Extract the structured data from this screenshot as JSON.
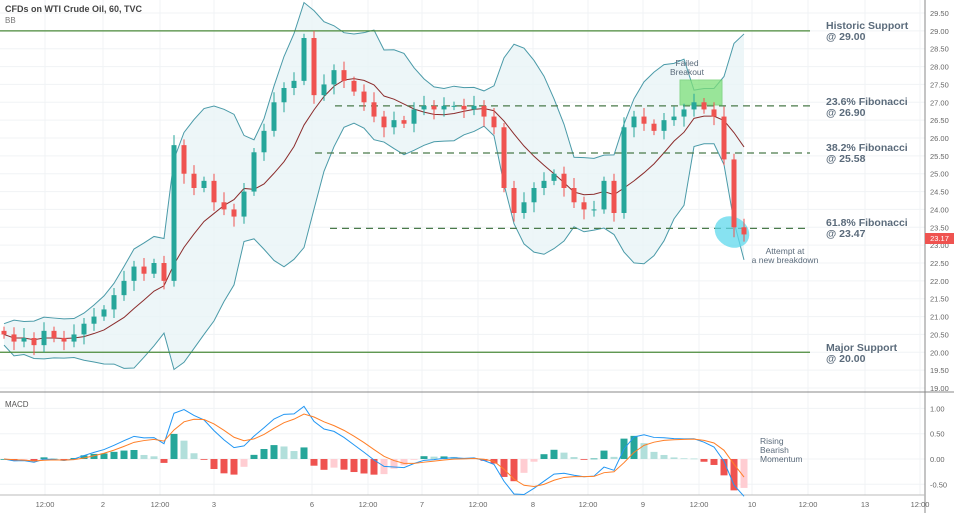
{
  "header": {
    "title": "CFDs on WTI Crude Oil, 60, TVC",
    "indicator": "BB"
  },
  "macd_label": "MACD",
  "current_price": "23.17",
  "colors": {
    "up": "#26a69a",
    "down": "#ef5350",
    "support": "#4a8a3a",
    "fib": "#4a7a4a",
    "bb": "#4a9aa8",
    "bbfill": "#e8f4f6",
    "ma": "#8b2c2c",
    "macd": "#2196f3",
    "signal": "#ff7f27"
  },
  "annotations": {
    "historic": [
      "Historic Support",
      "@ 29.00"
    ],
    "fib236": [
      "23.6% Fibonacci",
      "@ 26.90"
    ],
    "fib382": [
      "38.2% Fibonacci",
      "@ 25.58"
    ],
    "fib618": [
      "61.8% Fibonacci",
      "@ 23.47"
    ],
    "major": [
      "Major Support",
      "@ 20.00"
    ],
    "failed": [
      "Failed",
      "Breakout"
    ],
    "attempt": [
      "Attempt at",
      "a new breakdown"
    ],
    "momentum": [
      "Rising",
      "Bearish",
      "Momentum"
    ]
  },
  "chart_data": {
    "type": "candlestick",
    "title": "CFDs on WTI Crude Oil, 60, TVC",
    "closes": [
      20.5,
      20.3,
      20.4,
      20.2,
      20.6,
      20.4,
      20.3,
      20.5,
      20.8,
      21.0,
      21.2,
      21.6,
      22.0,
      22.4,
      22.2,
      22.5,
      22.0,
      25.8,
      25.0,
      24.6,
      24.8,
      24.2,
      24.0,
      23.8,
      24.5,
      25.6,
      26.2,
      27.0,
      27.4,
      27.6,
      28.8,
      27.2,
      27.5,
      27.9,
      27.6,
      27.3,
      27.0,
      26.6,
      26.3,
      26.5,
      26.4,
      26.8,
      26.9,
      26.8,
      26.9,
      26.9,
      26.8,
      26.9,
      26.6,
      26.3,
      24.6,
      23.9,
      24.2,
      24.6,
      24.8,
      25.0,
      24.6,
      24.2,
      24.0,
      24.0,
      24.8,
      23.9,
      26.3,
      26.6,
      26.4,
      26.2,
      26.5,
      26.6,
      26.8,
      27.0,
      26.8,
      26.6,
      25.4,
      23.5,
      23.3
    ],
    "levels": [
      {
        "label": "Historic Support",
        "value": 29.0,
        "style": "solid"
      },
      {
        "label": "23.6% Fibonacci",
        "value": 26.9,
        "style": "dashed"
      },
      {
        "label": "38.2% Fibonacci",
        "value": 25.58,
        "style": "dashed"
      },
      {
        "label": "61.8% Fibonacci",
        "value": 23.47,
        "style": "dashed"
      },
      {
        "label": "Major Support",
        "value": 20.0,
        "style": "solid"
      }
    ],
    "price_ticks": [
      "29.50",
      "29.00",
      "28.50",
      "28.00",
      "27.50",
      "27.00",
      "26.50",
      "26.00",
      "25.50",
      "25.00",
      "24.50",
      "24.00",
      "23.50",
      "23.00",
      "22.50",
      "22.00",
      "21.50",
      "21.00",
      "20.50",
      "20.00",
      "19.50",
      "19.00"
    ],
    "ylim": [
      19.0,
      29.5
    ],
    "macd_ticks": [
      "1.00",
      "0.50",
      "0.00",
      "-0.50"
    ],
    "macd_ylim": [
      -0.6,
      1.2
    ],
    "x_ticks": [
      "12:00",
      "2",
      "12:00",
      "3",
      "6",
      "12:00",
      "7",
      "12:00",
      "8",
      "12:00",
      "9",
      "12:00",
      "10",
      "12:00",
      "13",
      "12:00"
    ],
    "grid": true
  }
}
